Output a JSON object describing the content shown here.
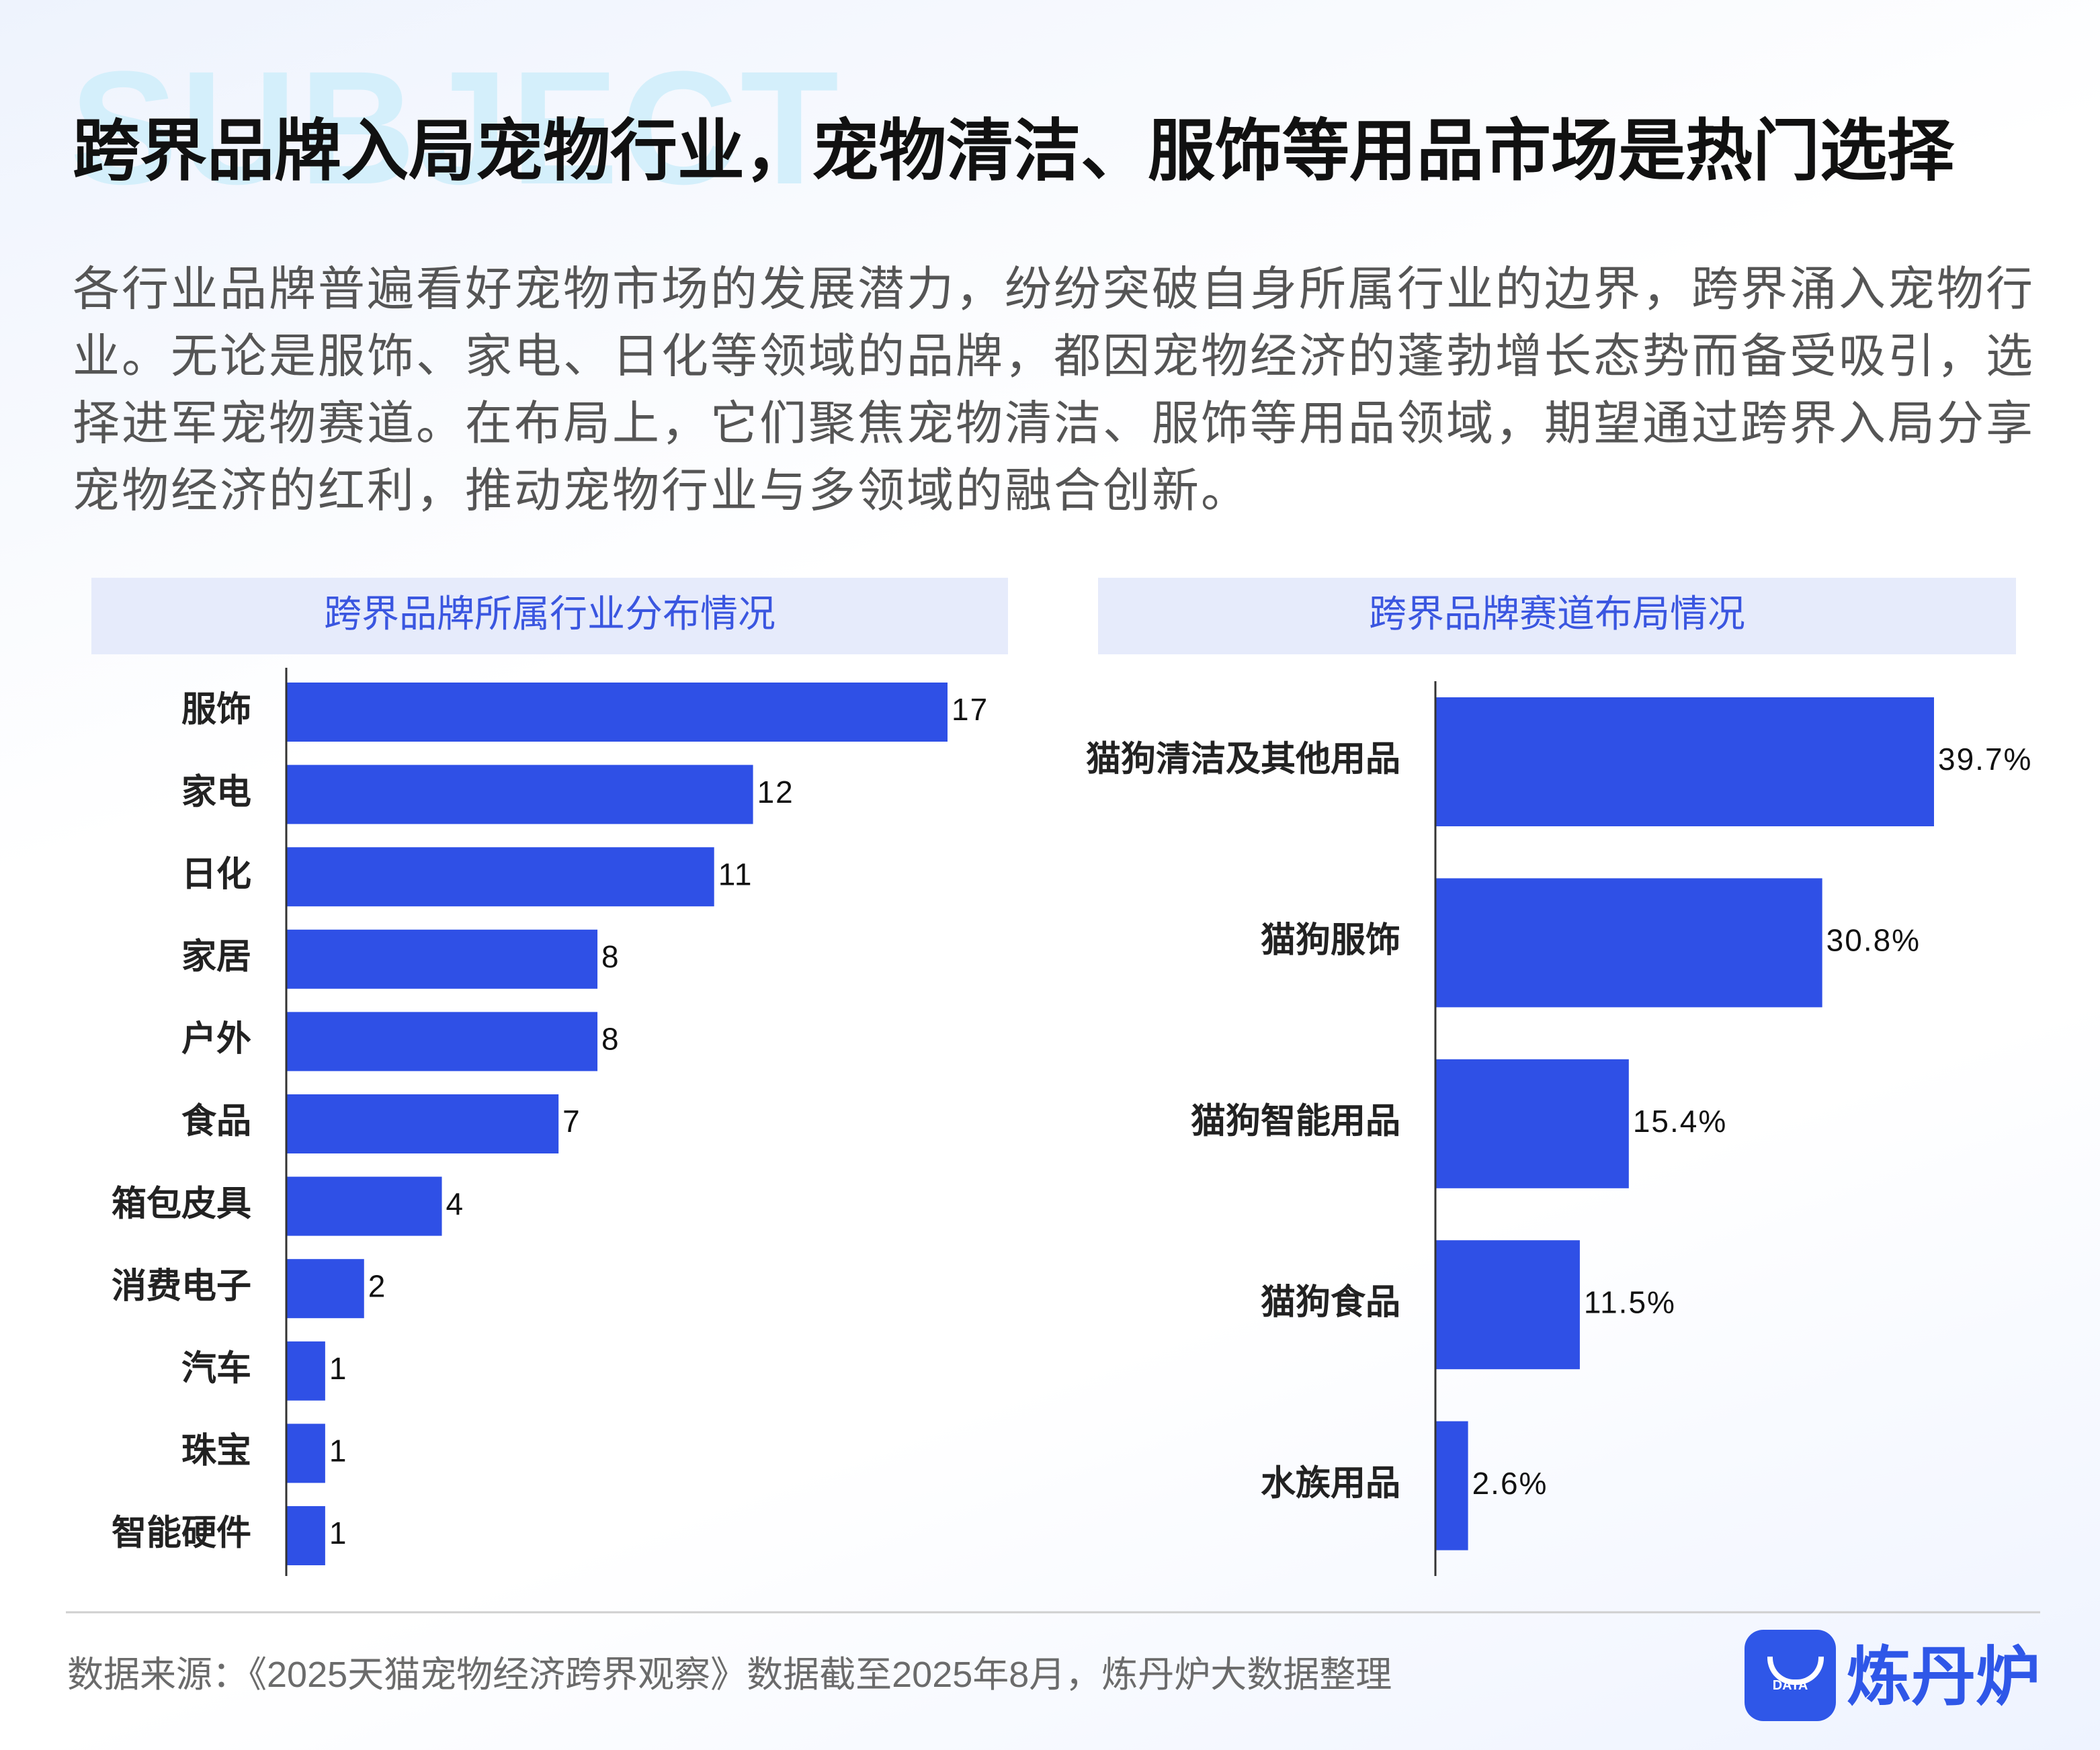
{
  "header": {
    "watermark": "SUBJECT",
    "title": "跨界品牌入局宠物行业，宠物清洁、服饰等用品市场是热门选择",
    "subtitle": "各行业品牌普遍看好宠物市场的发展潜力，纷纷突破自身所属行业的边界，跨界涌入宠物行业。无论是服饰、家电、日化等领域的品牌，都因宠物经济的蓬勃增长态势而备受吸引，选择进军宠物赛道。在布局上，它们聚焦宠物清洁、服饰等用品领域，期望通过跨界入局分享宠物经济的红利，推动宠物行业与多领域的融合创新。"
  },
  "chart_data": [
    {
      "type": "bar",
      "orientation": "horizontal",
      "title": "跨界品牌所属行业分布情况",
      "categories": [
        "服饰",
        "家电",
        "日化",
        "家居",
        "户外",
        "食品",
        "箱包皮具",
        "消费电子",
        "汽车",
        "珠宝",
        "智能硬件"
      ],
      "values": [
        17,
        12,
        11,
        8,
        8,
        7,
        4,
        2,
        1,
        1,
        1
      ],
      "color": "#2f50e6"
    },
    {
      "type": "bar",
      "orientation": "horizontal",
      "title": "跨界品牌赛道布局情况",
      "categories": [
        "猫狗清洁及其他用品",
        "猫狗服饰",
        "猫狗智能用品",
        "猫狗食品",
        "水族用品"
      ],
      "values": [
        39.7,
        30.8,
        15.4,
        11.5,
        2.6
      ],
      "value_labels": [
        "39.7%",
        "30.8%",
        "15.4%",
        "11.5%",
        "2.6%"
      ],
      "color": "#2f50e6"
    }
  ],
  "footer": {
    "source": "数据来源：《2025天猫宠物经济跨界观察》数据截至2025年8月，炼丹炉大数据整理",
    "logo_text": "DATA",
    "brand": "炼丹炉"
  }
}
